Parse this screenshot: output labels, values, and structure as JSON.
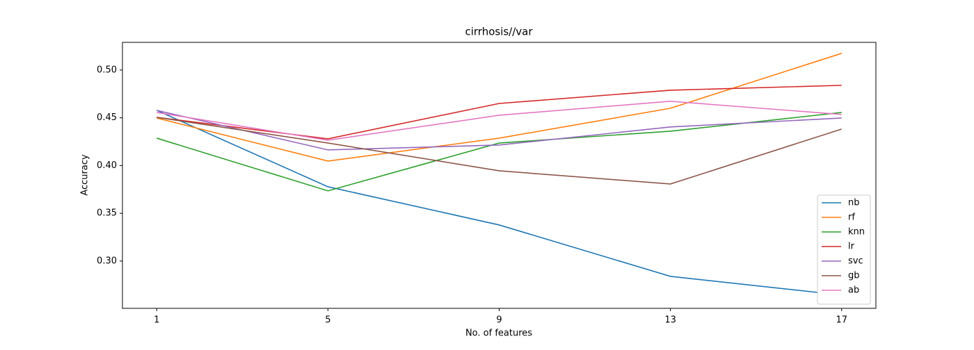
{
  "chart_data": {
    "type": "line",
    "title": "cirrhosis//var",
    "x_label": "No. of features",
    "y_label": "Accuracy",
    "x": [
      1,
      5,
      9,
      13,
      17
    ],
    "series": [
      {
        "name": "nb",
        "color": "#1f77b4",
        "values": [
          0.4578,
          0.3778,
          0.3378,
          0.284,
          0.2644
        ]
      },
      {
        "name": "rf",
        "color": "#ff7f0e",
        "values": [
          0.4498,
          0.4047,
          0.4287,
          0.46,
          0.5175
        ]
      },
      {
        "name": "knn",
        "color": "#2ca02c",
        "values": [
          0.4287,
          0.3735,
          0.4236,
          0.436,
          0.4556
        ]
      },
      {
        "name": "lr",
        "color": "#d62728",
        "values": [
          0.4505,
          0.428,
          0.465,
          0.4789,
          0.484
        ]
      },
      {
        "name": "svc",
        "color": "#9467bd",
        "values": [
          0.4578,
          0.4164,
          0.4215,
          0.4404,
          0.4498
        ]
      },
      {
        "name": "gb",
        "color": "#8c564b",
        "values": [
          0.4505,
          0.4236,
          0.3945,
          0.3807,
          0.4382
        ]
      },
      {
        "name": "ab",
        "color": "#e377c2",
        "values": [
          0.4556,
          0.4265,
          0.4527,
          0.4673,
          0.4535
        ]
      }
    ],
    "xlim": [
      0.2,
      17.8
    ],
    "ylim": [
      0.2505,
      0.529
    ],
    "xticks": [
      1,
      5,
      9,
      13,
      17
    ],
    "yticks": [
      {
        "value": 0.3,
        "label": "0.30"
      },
      {
        "value": 0.35,
        "label": "0.35"
      },
      {
        "value": 0.4,
        "label": "0.40"
      },
      {
        "value": 0.45,
        "label": "0.45"
      },
      {
        "value": 0.5,
        "label": "0.50"
      }
    ],
    "grid": false,
    "legend": "lower right"
  }
}
